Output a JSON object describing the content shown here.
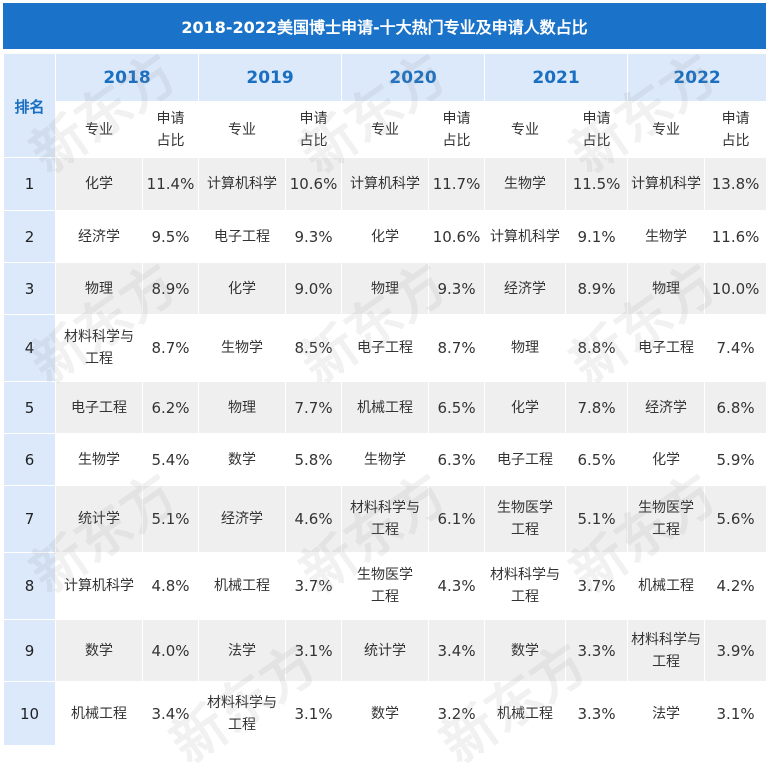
{
  "title": "2018-2022美国博士申请-十大热门专业及申请人数占比",
  "rank_header": "排名",
  "major_header": "专业",
  "share_header": "申请\n占比",
  "years": [
    "2018",
    "2019",
    "2020",
    "2021",
    "2022"
  ],
  "rows": [
    {
      "rank": "1",
      "cells": [
        [
          "化学",
          "11.4%"
        ],
        [
          "计算机科学",
          "10.6%"
        ],
        [
          "计算机科学",
          "11.7%"
        ],
        [
          "生物学",
          "11.5%"
        ],
        [
          "计算机科学",
          "13.8%"
        ]
      ]
    },
    {
      "rank": "2",
      "cells": [
        [
          "经济学",
          "9.5%"
        ],
        [
          "电子工程",
          "9.3%"
        ],
        [
          "化学",
          "10.6%"
        ],
        [
          "计算机科学",
          "9.1%"
        ],
        [
          "生物学",
          "11.6%"
        ]
      ]
    },
    {
      "rank": "3",
      "cells": [
        [
          "物理",
          "8.9%"
        ],
        [
          "化学",
          "9.0%"
        ],
        [
          "物理",
          "9.3%"
        ],
        [
          "经济学",
          "8.9%"
        ],
        [
          "物理",
          "10.0%"
        ]
      ]
    },
    {
      "rank": "4",
      "cells": [
        [
          "材料科学与\n工程",
          "8.7%"
        ],
        [
          "生物学",
          "8.5%"
        ],
        [
          "电子工程",
          "8.7%"
        ],
        [
          "物理",
          "8.8%"
        ],
        [
          "电子工程",
          "7.4%"
        ]
      ]
    },
    {
      "rank": "5",
      "cells": [
        [
          "电子工程",
          "6.2%"
        ],
        [
          "物理",
          "7.7%"
        ],
        [
          "机械工程",
          "6.5%"
        ],
        [
          "化学",
          "7.8%"
        ],
        [
          "经济学",
          "6.8%"
        ]
      ]
    },
    {
      "rank": "6",
      "cells": [
        [
          "生物学",
          "5.4%"
        ],
        [
          "数学",
          "5.8%"
        ],
        [
          "生物学",
          "6.3%"
        ],
        [
          "电子工程",
          "6.5%"
        ],
        [
          "化学",
          "5.9%"
        ]
      ]
    },
    {
      "rank": "7",
      "cells": [
        [
          "统计学",
          "5.1%"
        ],
        [
          "经济学",
          "4.6%"
        ],
        [
          "材料科学与\n工程",
          "6.1%"
        ],
        [
          "生物医学\n工程",
          "5.1%"
        ],
        [
          "生物医学\n工程",
          "5.6%"
        ]
      ]
    },
    {
      "rank": "8",
      "cells": [
        [
          "计算机科学",
          "4.8%"
        ],
        [
          "机械工程",
          "3.7%"
        ],
        [
          "生物医学\n工程",
          "4.3%"
        ],
        [
          "材料科学与\n工程",
          "3.7%"
        ],
        [
          "机械工程",
          "4.2%"
        ]
      ]
    },
    {
      "rank": "9",
      "cells": [
        [
          "数学",
          "4.0%"
        ],
        [
          "法学",
          "3.1%"
        ],
        [
          "统计学",
          "3.4%"
        ],
        [
          "数学",
          "3.3%"
        ],
        [
          "材料科学与\n工程",
          "3.9%"
        ]
      ]
    },
    {
      "rank": "10",
      "cells": [
        [
          "机械工程",
          "3.4%"
        ],
        [
          "材料科学与\n工程",
          "3.1%"
        ],
        [
          "数学",
          "3.2%"
        ],
        [
          "机械工程",
          "3.3%"
        ],
        [
          "法学",
          "3.1%"
        ]
      ]
    }
  ],
  "watermark_text": "新东方"
}
